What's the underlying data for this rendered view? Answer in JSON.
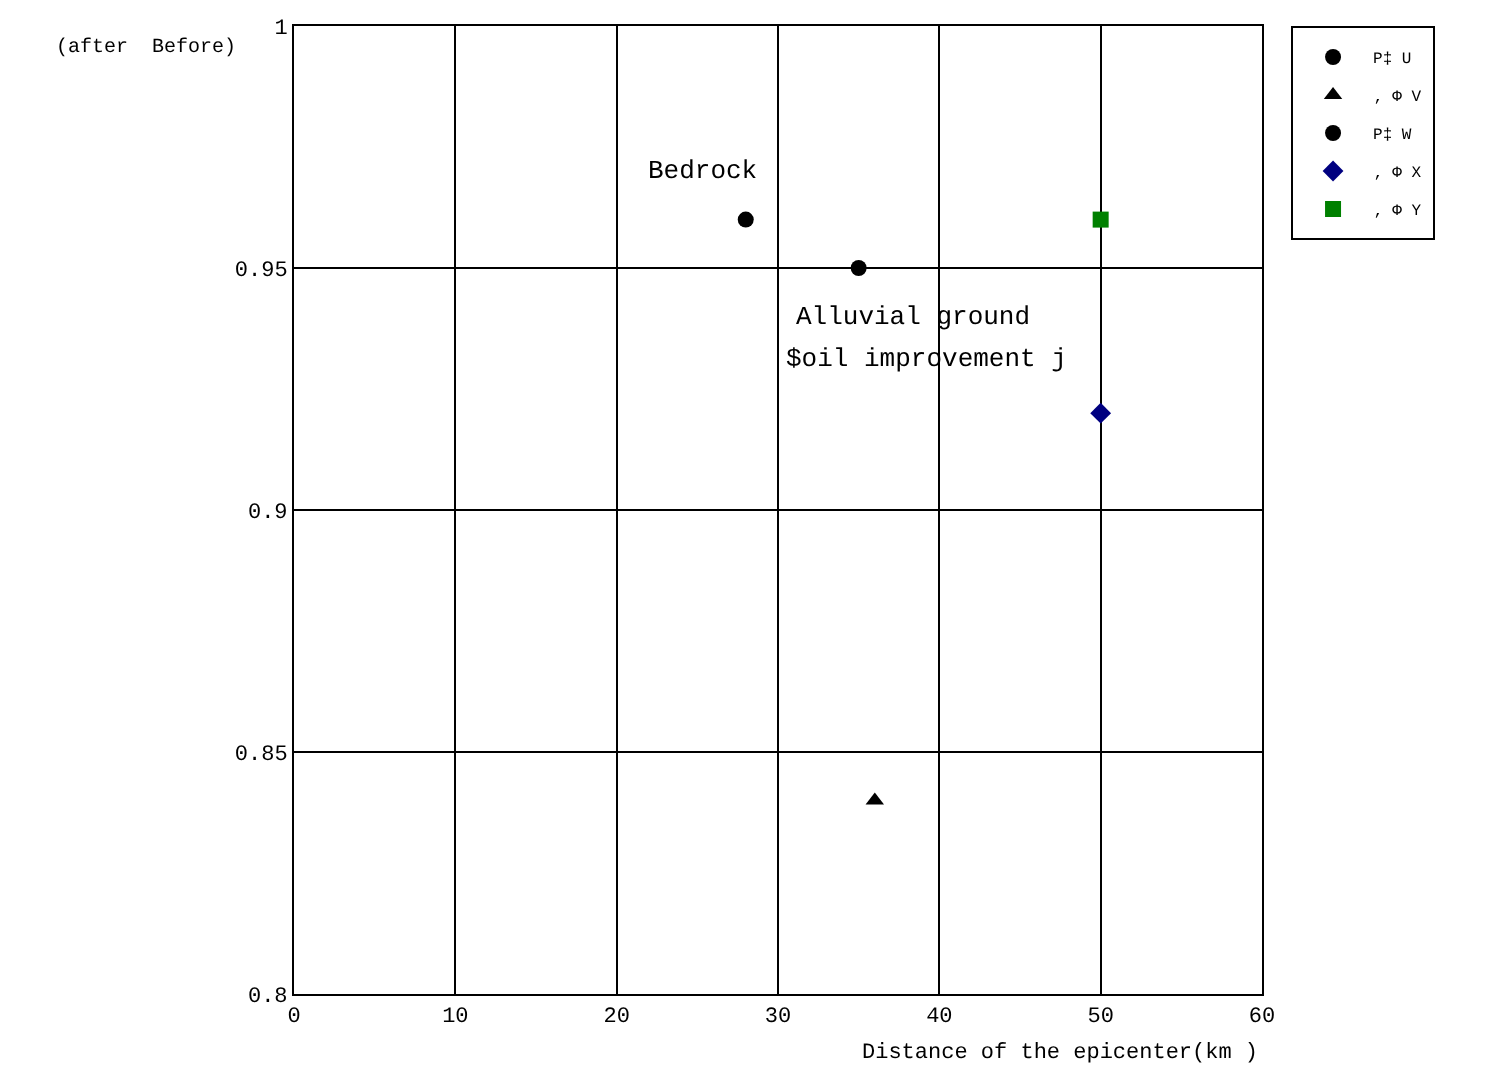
{
  "chart_data": {
    "type": "scatter",
    "xlabel": "Distance of the epicenter(km )",
    "ylabel": "(after  Before)",
    "xlim": [
      0,
      60
    ],
    "xticks": [
      0,
      10,
      20,
      30,
      40,
      50,
      60
    ],
    "ylim": [
      0.8,
      1
    ],
    "yticks": [
      {
        "value": 0.8,
        "label": "0.8"
      },
      {
        "value": 0.85,
        "label": "0.85"
      },
      {
        "value": 0.9,
        "label": "0.9"
      },
      {
        "value": 0.95,
        "label": "0.95"
      },
      {
        "value": 1,
        "label": "1"
      }
    ],
    "grid": true,
    "legend": "top right",
    "series": [
      {
        "name": "P‡ U",
        "color": "#000000",
        "marker": "circle",
        "x": [
          28
        ],
        "values": [
          0.96
        ]
      },
      {
        "name": "‚ Φ V",
        "color": "#000000",
        "marker": "triangle",
        "x": [
          36
        ],
        "values": [
          0.84
        ]
      },
      {
        "name": "P‡ W",
        "color": "#000000",
        "marker": "circle",
        "x": [
          35
        ],
        "values": [
          0.95
        ]
      },
      {
        "name": "‚ Φ X",
        "color": "#000080",
        "marker": "diamond",
        "x": [
          50
        ],
        "values": [
          0.92
        ]
      },
      {
        "name": "‚ Φ Y",
        "color": "#008000",
        "marker": "square",
        "x": [
          50
        ],
        "values": [
          0.96
        ]
      }
    ],
    "annotations": [
      "Bedrock",
      "Alluvial ground",
      "$oil improvement j"
    ]
  }
}
